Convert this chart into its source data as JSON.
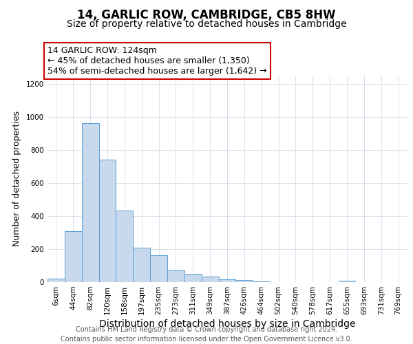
{
  "title": "14, GARLIC ROW, CAMBRIDGE, CB5 8HW",
  "subtitle": "Size of property relative to detached houses in Cambridge",
  "xlabel": "Distribution of detached houses by size in Cambridge",
  "ylabel": "Number of detached properties",
  "bar_labels": [
    "6sqm",
    "44sqm",
    "82sqm",
    "120sqm",
    "158sqm",
    "197sqm",
    "235sqm",
    "273sqm",
    "311sqm",
    "349sqm",
    "387sqm",
    "426sqm",
    "464sqm",
    "502sqm",
    "540sqm",
    "578sqm",
    "617sqm",
    "655sqm",
    "693sqm",
    "731sqm",
    "769sqm"
  ],
  "bar_heights": [
    20,
    308,
    962,
    742,
    432,
    210,
    163,
    72,
    48,
    33,
    15,
    12,
    5,
    0,
    0,
    0,
    0,
    8,
    0,
    0,
    0
  ],
  "bar_color": "#c8d9ed",
  "bar_edge_color": "#5a9fd4",
  "annotation_line1": "14 GARLIC ROW: 124sqm",
  "annotation_line2": "← 45% of detached houses are smaller (1,350)",
  "annotation_line3": "54% of semi-detached houses are larger (1,642) →",
  "annotation_box_color": "#ffffff",
  "annotation_box_edge_color": "#cc0000",
  "footer_line1": "Contains HM Land Registry data © Crown copyright and database right 2024.",
  "footer_line2": "Contains public sector information licensed under the Open Government Licence v3.0.",
  "ylim": [
    0,
    1250
  ],
  "yticks": [
    0,
    200,
    400,
    600,
    800,
    1000,
    1200
  ],
  "title_fontsize": 12,
  "subtitle_fontsize": 10,
  "xlabel_fontsize": 10,
  "ylabel_fontsize": 9,
  "tick_fontsize": 7.5,
  "annotation_fontsize": 9,
  "footer_fontsize": 7
}
